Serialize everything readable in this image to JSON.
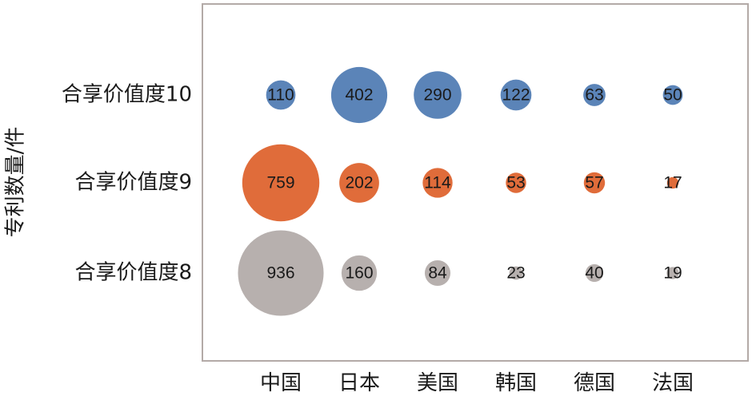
{
  "chart_data": {
    "type": "bubble",
    "y_label": "专利数量/件",
    "categories": [
      "中国",
      "日本",
      "美国",
      "韩国",
      "德国",
      "法国"
    ],
    "series": [
      {
        "name": "合享价值度10",
        "color": "#5b84b8",
        "values": [
          110,
          402,
          290,
          122,
          63,
          50
        ]
      },
      {
        "name": "合享价值度9",
        "color": "#e06c3a",
        "values": [
          759,
          202,
          114,
          53,
          57,
          17
        ]
      },
      {
        "name": "合享价值度8",
        "color": "#b7b0ae",
        "values": [
          936,
          160,
          84,
          23,
          40,
          19
        ]
      }
    ]
  }
}
